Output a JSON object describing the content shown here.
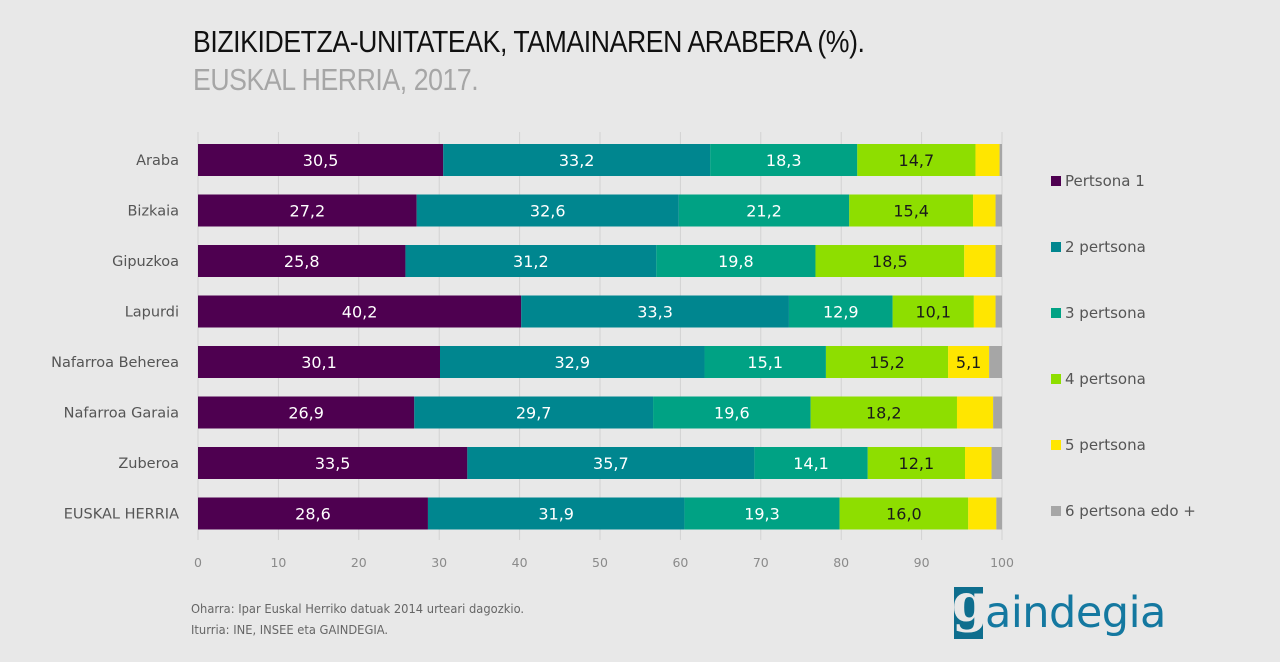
{
  "chart_data": {
    "type": "bar",
    "orientation": "horizontal",
    "stacked": true,
    "title": "BIZIKIDETZA-UNITATEAK, TAMAINAREN ARABERA (%).",
    "subtitle": "EUSKAL HERRIA, 2017.",
    "xlabel": "",
    "ylabel": "",
    "xlim": [
      0,
      100
    ],
    "xticks": [
      0,
      10,
      20,
      30,
      40,
      50,
      60,
      70,
      80,
      90,
      100
    ],
    "grid": "vertical",
    "legend_position": "right",
    "categories": [
      "Araba",
      "Bizkaia",
      "Gipuzkoa",
      "Lapurdi",
      "Nafarroa Beherea",
      "Nafarroa Garaia",
      "Zuberoa",
      "EUSKAL HERRIA"
    ],
    "series": [
      {
        "name": "Pertsona 1",
        "color": "#4e0050",
        "label_color": "#ffffff",
        "values": [
          30.5,
          27.2,
          25.8,
          40.2,
          30.1,
          26.9,
          33.5,
          28.6
        ],
        "labels": [
          "30,5",
          "27,2",
          "25,8",
          "40,2",
          "30,1",
          "26,9",
          "33,5",
          "28,6"
        ]
      },
      {
        "name": "2 pertsona",
        "color": "#00868f",
        "label_color": "#ffffff",
        "values": [
          33.2,
          32.6,
          31.2,
          33.3,
          32.9,
          29.7,
          35.7,
          31.9
        ],
        "labels": [
          "33,2",
          "32,6",
          "31,2",
          "33,3",
          "32,9",
          "29,7",
          "35,7",
          "31,9"
        ]
      },
      {
        "name": "3 pertsona",
        "color": "#00a284",
        "label_color": "#ffffff",
        "values": [
          18.3,
          21.2,
          19.8,
          12.9,
          15.1,
          19.6,
          14.1,
          19.3
        ],
        "labels": [
          "18,3",
          "21,2",
          "19,8",
          "12,9",
          "15,1",
          "19,6",
          "14,1",
          "19,3"
        ]
      },
      {
        "name": "4 pertsona",
        "color": "#8ede00",
        "label_color": "#1a1a1a",
        "values": [
          14.7,
          15.4,
          18.5,
          10.1,
          15.2,
          18.2,
          12.1,
          16.0
        ],
        "labels": [
          "14,7",
          "15,4",
          "18,5",
          "10,1",
          "15,2",
          "18,2",
          "12,1",
          "16,0"
        ]
      },
      {
        "name": "5 pertsona",
        "color": "#ffe600",
        "label_color": "#1a1a1a",
        "values": [
          3.0,
          2.8,
          3.9,
          2.7,
          5.1,
          4.5,
          3.3,
          3.5
        ],
        "labels": [
          "",
          "",
          "",
          "",
          "5,1",
          "",
          "",
          ""
        ]
      },
      {
        "name": "6 pertsona edo +",
        "color": "#a6a6a6",
        "label_color": "#1a1a1a",
        "values": [
          0.3,
          0.8,
          0.8,
          0.8,
          1.6,
          1.1,
          1.3,
          0.7
        ],
        "labels": [
          "",
          "",
          "",
          "",
          "",
          "",
          "",
          ""
        ]
      }
    ]
  },
  "notes": {
    "oharra": "Oharra: Ipar Euskal Herriko datuak 2014 urteari  dagozkio.",
    "iturria": "Iturria: INE, INSEE eta GAINDEGIA."
  },
  "logo": {
    "letter": "g",
    "text": "aindegia"
  }
}
